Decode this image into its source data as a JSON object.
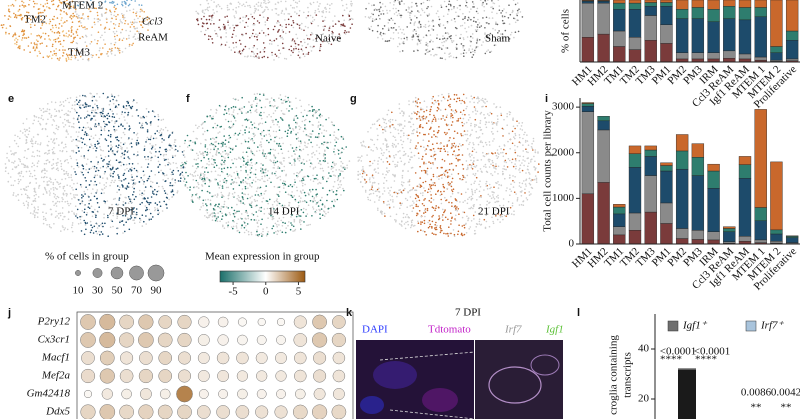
{
  "panel_letters": [
    "e",
    "f",
    "g",
    "i",
    "j",
    "k",
    "l"
  ],
  "umap_labels": {
    "clusters": [
      "MTEM 2",
      "TM2",
      "TM3"
    ],
    "ccl3": [
      "Ccl3",
      "ReAM"
    ],
    "conditions": [
      "Naive",
      "Sham",
      "7 DPI",
      "14 DPI",
      "21 DPI"
    ]
  },
  "legends": {
    "size_title": "% of cells in group",
    "size_ticks": [
      10,
      30,
      50,
      70,
      90
    ],
    "color_title": "Mean expression in group",
    "color_ticks": [
      -5,
      0,
      5
    ],
    "clim": [
      -7,
      6
    ]
  },
  "micrograph": {
    "title": "7 DPI",
    "channels": [
      "DAPI",
      "Tdtomato",
      "Irf7",
      "Igf1"
    ]
  },
  "chart_data": [
    {
      "type": "stacked-bar",
      "y_label": "% of cells",
      "categories": [
        "HM1",
        "HM2",
        "TM1",
        "TM2",
        "TM3",
        "PM1",
        "PM2",
        "PM3",
        "IRM",
        "Ccl3 ReAM",
        "Igf1 ReAM",
        "MTEM 1",
        "MTEM 2",
        "Proliferative"
      ],
      "ylim": [
        0,
        100
      ],
      "series": [
        {
          "color": "#7a3b3b",
          "values": [
            40,
            45,
            25,
            20,
            35,
            30,
            5,
            5,
            5,
            6,
            5,
            3,
            1,
            2
          ]
        },
        {
          "color": "#8a8a8a",
          "values": [
            55,
            50,
            25,
            20,
            40,
            30,
            10,
            10,
            10,
            12,
            8,
            5,
            2,
            3
          ]
        },
        {
          "color": "#1d4b6b",
          "values": [
            3,
            3,
            35,
            45,
            15,
            30,
            55,
            55,
            50,
            52,
            55,
            65,
            12,
            30
          ]
        },
        {
          "color": "#2e7d6e",
          "values": [
            1,
            1,
            10,
            10,
            6,
            6,
            15,
            18,
            20,
            20,
            20,
            15,
            10,
            15
          ]
        },
        {
          "color": "#c9682c",
          "values": [
            1,
            1,
            5,
            5,
            4,
            4,
            15,
            12,
            15,
            10,
            12,
            12,
            75,
            50
          ]
        }
      ]
    },
    {
      "type": "stacked-bar",
      "y_label": "Total cell counts per library",
      "categories": [
        "HM1",
        "HM2",
        "TM1",
        "TM2",
        "TM3",
        "PM1",
        "PM2",
        "PM3",
        "IRM",
        "Ccl3 ReAM",
        "Igf1 ReAM",
        "MTEM 1",
        "MTEM 2",
        "Proliferative"
      ],
      "ylim": [
        0,
        3200
      ],
      "yticks": [
        0,
        1000,
        2000,
        3000
      ],
      "series": [
        {
          "color": "#7a3b3b",
          "values": [
            1100,
            1350,
            200,
            300,
            700,
            450,
            120,
            100,
            90,
            20,
            60,
            30,
            20,
            10
          ]
        },
        {
          "color": "#8a8a8a",
          "values": [
            1800,
            1150,
            180,
            380,
            800,
            450,
            220,
            200,
            180,
            30,
            110,
            60,
            40,
            20
          ]
        },
        {
          "color": "#1d4b6b",
          "values": [
            120,
            200,
            280,
            1000,
            420,
            700,
            1300,
            1200,
            950,
            220,
            1270,
            420,
            160,
            110
          ]
        },
        {
          "color": "#2e7d6e",
          "values": [
            60,
            100,
            150,
            300,
            140,
            120,
            400,
            400,
            380,
            70,
            300,
            290,
            90,
            30
          ]
        },
        {
          "color": "#c9682c",
          "values": [
            20,
            0,
            60,
            170,
            90,
            60,
            360,
            300,
            150,
            40,
            180,
            2150,
            1490,
            10
          ]
        }
      ]
    },
    {
      "type": "dot",
      "rows": [
        "P2ry12",
        "Cx3cr1",
        "Macf1",
        "Mef2a",
        "Gm42418",
        "Ddx5"
      ],
      "sizes": [
        [
          80,
          85,
          70,
          75,
          60,
          65,
          40,
          35,
          25,
          20,
          20,
          55,
          70,
          60
        ],
        [
          80,
          85,
          75,
          80,
          70,
          65,
          45,
          40,
          35,
          30,
          30,
          60,
          75,
          65
        ],
        [
          60,
          70,
          55,
          60,
          60,
          55,
          45,
          50,
          50,
          45,
          45,
          50,
          55,
          50
        ],
        [
          65,
          75,
          60,
          65,
          60,
          55,
          45,
          45,
          40,
          40,
          40,
          50,
          55,
          50
        ],
        [
          20,
          40,
          35,
          45,
          35,
          90,
          30,
          30,
          35,
          30,
          30,
          35,
          45,
          45
        ],
        [
          75,
          80,
          70,
          75,
          70,
          70,
          60,
          60,
          60,
          55,
          55,
          70,
          75,
          70
        ]
      ],
      "expression": [
        [
          2,
          2.5,
          1.5,
          2,
          1.5,
          1.5,
          0.5,
          0.5,
          0.3,
          0.3,
          0.3,
          1,
          2,
          1.5
        ],
        [
          2,
          2.5,
          1.5,
          2,
          1.5,
          1.5,
          0.6,
          0.5,
          0.4,
          0.4,
          0.4,
          1,
          2,
          1.5
        ],
        [
          1.2,
          1.8,
          1,
          1.2,
          1.5,
          1.2,
          0.8,
          1,
          1,
          0.8,
          0.8,
          1,
          1.2,
          1
        ],
        [
          1.3,
          2,
          1.2,
          1.5,
          1.5,
          1.2,
          0.8,
          0.9,
          0.8,
          0.8,
          0.8,
          1,
          1.2,
          1
        ],
        [
          0.3,
          0.8,
          0.6,
          0.9,
          0.6,
          4.5,
          0.5,
          0.5,
          0.6,
          0.5,
          0.5,
          0.6,
          0.9,
          0.9
        ],
        [
          1.5,
          2,
          1.4,
          1.6,
          1.5,
          1.5,
          1.2,
          1.2,
          1.2,
          1.1,
          1.1,
          1.4,
          1.6,
          1.4
        ]
      ]
    },
    {
      "type": "bar",
      "y_label": "croglia containing",
      "y_label_2": "transcripts",
      "ylim": [
        12,
        54
      ],
      "yticks": [
        20,
        40
      ],
      "series": [
        {
          "name": "Igf1⁺",
          "color": "#6f6f6f",
          "values": [
            32
          ]
        },
        {
          "name": "Irf7⁺",
          "color": "#a9c4dc",
          "values": [
            null
          ]
        }
      ],
      "annotations": [
        "<0.0001",
        "<0.0001",
        "****",
        "****",
        "0.0086",
        "0.0042",
        "**",
        "**"
      ]
    }
  ]
}
